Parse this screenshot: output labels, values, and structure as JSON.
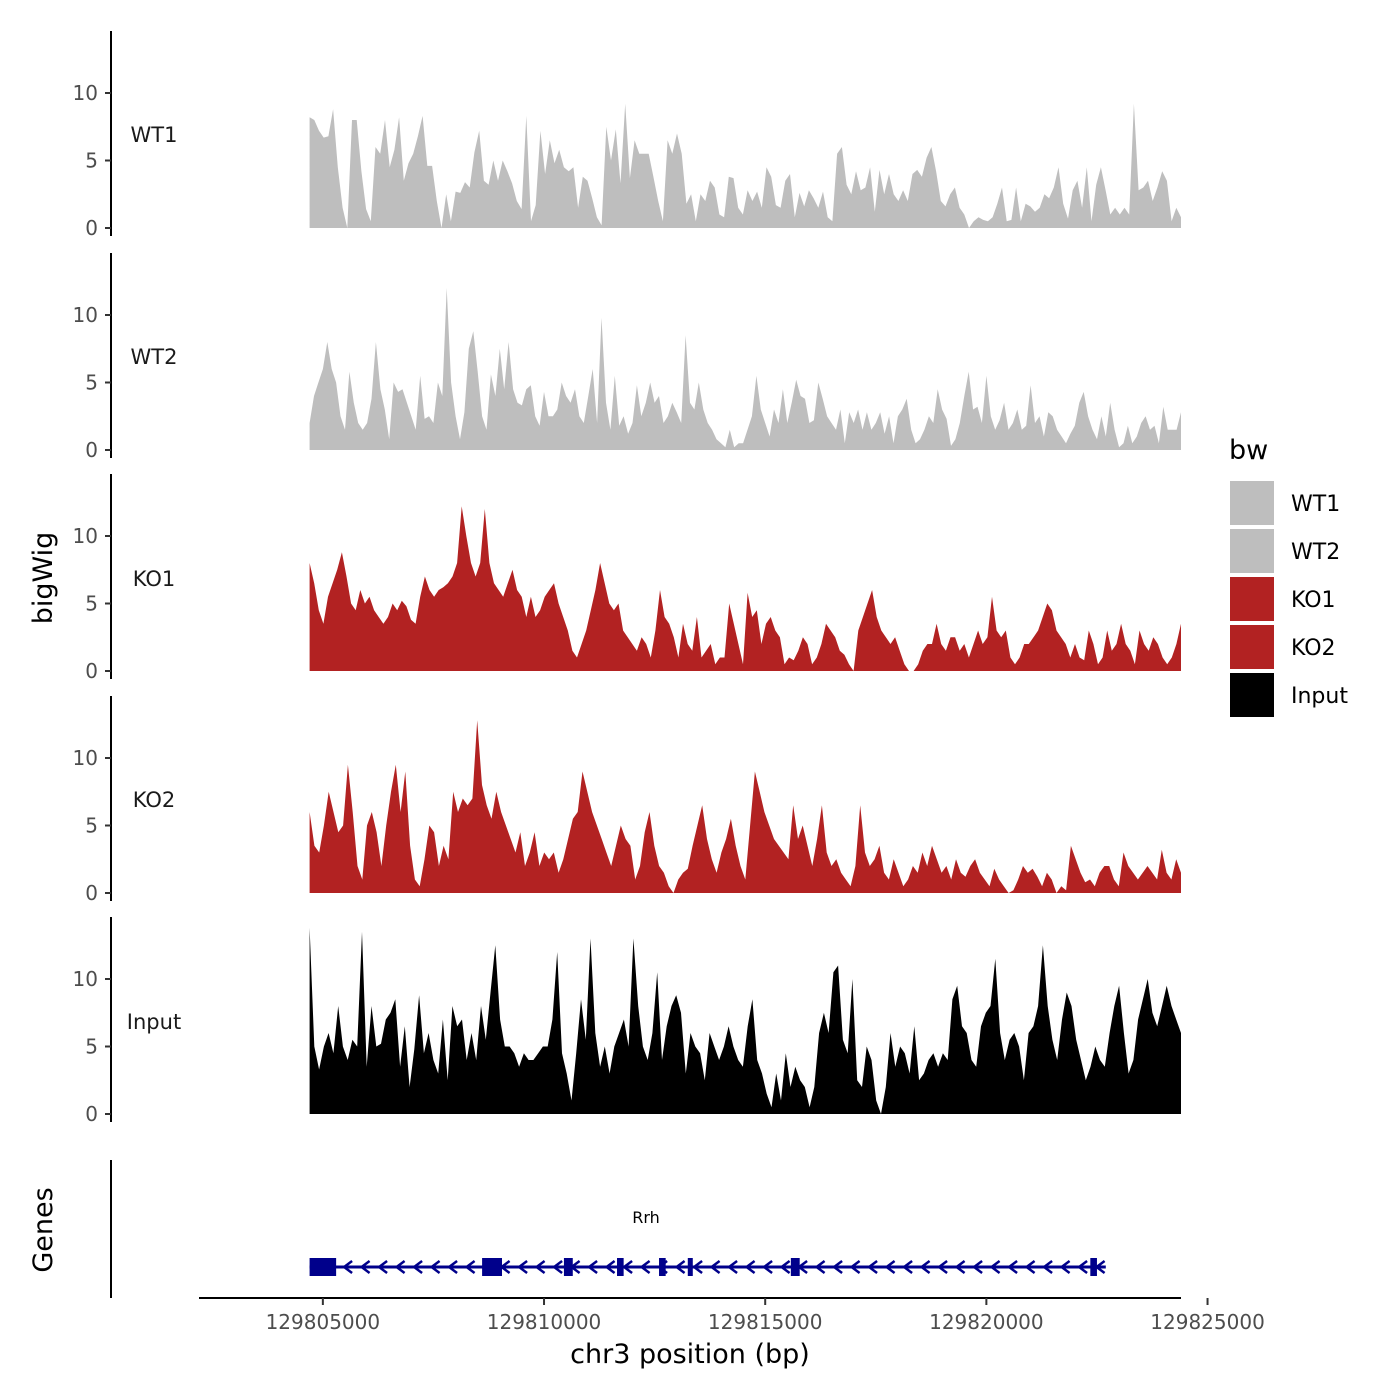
{
  "chart_data": {
    "type": "area",
    "title": "",
    "ylabel": "bigWig",
    "gene_panel_label": "Genes",
    "xlabel": "chr3 position (bp)",
    "x_range": [
      129802200,
      129824400
    ],
    "data_x_start": 129804700,
    "data_x_end": 129824400,
    "ylim": [
      0,
      14.5
    ],
    "y_ticks": [
      "0",
      "5",
      "10"
    ],
    "y_tick_values": [
      0,
      5,
      10
    ],
    "x_ticks": [
      "129805000",
      "129810000",
      "129815000",
      "129820000",
      "129825000"
    ],
    "x_tick_values": [
      129805000,
      129810000,
      129815000,
      129820000,
      129825000
    ],
    "legend": {
      "title": "bw",
      "position": "right",
      "entries": [
        {
          "label": "WT1",
          "color": "#bebebe"
        },
        {
          "label": "WT2",
          "color": "#bebebe"
        },
        {
          "label": "KO1",
          "color": "#b22222"
        },
        {
          "label": "KO2",
          "color": "#b22222"
        },
        {
          "label": "Input",
          "color": "#000000"
        }
      ]
    },
    "series": [
      {
        "name": "WT1",
        "color": "#bebebe",
        "values": [
          8.2,
          8.0,
          7.2,
          6.7,
          6.8,
          8.8,
          4.5,
          1.5,
          0.0,
          8.0,
          8.0,
          4.2,
          1.4,
          0.5,
          6.0,
          5.5,
          8.0,
          4.5,
          5.8,
          8.2,
          3.5,
          4.8,
          5.5,
          6.8,
          8.3,
          4.6,
          4.6,
          2.0,
          0.0,
          2.5,
          0.5,
          2.7,
          2.6,
          3.4,
          3.0,
          5.6,
          7.2,
          3.5,
          3.2,
          5.0,
          3.5,
          5.0,
          4.2,
          3.3,
          2.0,
          1.4,
          8.3,
          0.5,
          1.7,
          7.2,
          4.0,
          6.5,
          4.8,
          5.8,
          4.5,
          4.2,
          4.5,
          1.5,
          3.8,
          3.5,
          2.2,
          0.8,
          0.2,
          7.5,
          5.0,
          7.3,
          3.3,
          9.2,
          3.7,
          6.5,
          5.5,
          5.5,
          5.5,
          3.8,
          2.0,
          0.5,
          6.5,
          5.5,
          7.0,
          5.5,
          1.8,
          2.5,
          0.5,
          2.5,
          2.0,
          3.5,
          3.0,
          1.0,
          0.8,
          3.8,
          3.7,
          1.5,
          1.0,
          2.8,
          2.0,
          2.7,
          1.5,
          4.5,
          3.8,
          1.7,
          1.5,
          3.5,
          4.0,
          0.8,
          2.6,
          1.6,
          2.8,
          2.2,
          1.5,
          2.7,
          0.8,
          0.5,
          5.5,
          6.0,
          3.2,
          2.5,
          4.2,
          2.8,
          3.0,
          4.5,
          1.2,
          4.3,
          2.5,
          4.0,
          2.5,
          2.0,
          2.8,
          2.0,
          4.0,
          4.3,
          3.8,
          5.2,
          6.0,
          4.2,
          2.0,
          1.6,
          2.5,
          3.0,
          1.5,
          1.0,
          0.0,
          0.5,
          0.8,
          0.6,
          0.5,
          0.8,
          1.8,
          3.0,
          0.5,
          0.6,
          3.0,
          0.5,
          1.8,
          1.6,
          1.2,
          1.5,
          2.5,
          2.2,
          3.0,
          4.5,
          1.8,
          0.7,
          2.8,
          3.5,
          1.5,
          4.5,
          0.5,
          3.2,
          4.5,
          2.8,
          1.0,
          1.5,
          1.0,
          1.5,
          1.0,
          9.2,
          2.8,
          3.0,
          3.5,
          2.0,
          3.0,
          4.2,
          3.5,
          0.5,
          1.5,
          0.8
        ]
      },
      {
        "name": "WT2",
        "color": "#bebebe",
        "values": [
          2.0,
          4.0,
          5.0,
          6.0,
          8.0,
          6.0,
          5.0,
          2.5,
          1.5,
          5.8,
          3.5,
          2.0,
          1.5,
          2.0,
          3.8,
          8.0,
          4.5,
          3.0,
          0.8,
          5.0,
          4.3,
          4.5,
          3.5,
          2.5,
          1.5,
          5.5,
          2.3,
          2.5,
          2.0,
          5.0,
          4.0,
          12.0,
          5.0,
          2.5,
          0.8,
          2.8,
          7.5,
          8.8,
          5.8,
          2.5,
          1.5,
          5.6,
          4.0,
          7.5,
          4.5,
          8.0,
          4.5,
          3.5,
          3.3,
          4.5,
          4.8,
          2.5,
          1.8,
          4.3,
          2.5,
          2.5,
          3.0,
          5.0,
          4.0,
          3.5,
          4.5,
          2.5,
          2.0,
          4.0,
          6.0,
          2.0,
          9.8,
          3.5,
          1.5,
          5.5,
          1.8,
          2.5,
          1.2,
          2.0,
          4.8,
          2.5,
          3.5,
          5.0,
          3.5,
          4.0,
          2.0,
          2.5,
          3.5,
          2.8,
          2.0,
          8.5,
          3.5,
          3.0,
          5.0,
          3.0,
          2.0,
          1.5,
          0.8,
          0.5,
          0.2,
          1.5,
          0.2,
          0.5,
          0.5,
          1.5,
          2.5,
          5.5,
          3.0,
          2.0,
          1.0,
          3.0,
          2.0,
          4.5,
          2.0,
          3.5,
          5.2,
          4.0,
          3.8,
          2.0,
          2.2,
          5.0,
          3.8,
          2.5,
          2.0,
          1.5,
          3.0,
          0.5,
          2.8,
          2.0,
          3.0,
          1.5,
          2.8,
          1.5,
          2.0,
          2.8,
          1.2,
          2.5,
          0.5,
          2.5,
          3.0,
          3.8,
          1.5,
          0.5,
          0.8,
          1.5,
          2.5,
          2.0,
          4.5,
          3.0,
          2.3,
          0.3,
          0.8,
          2.0,
          4.0,
          5.8,
          3.0,
          3.2,
          2.0,
          5.5,
          2.5,
          1.5,
          2.2,
          3.5,
          1.5,
          2.0,
          3.0,
          1.5,
          1.8,
          4.8,
          2.0,
          2.5,
          1.0,
          2.8,
          2.5,
          1.5,
          1.0,
          0.5,
          1.2,
          1.8,
          3.5,
          4.3,
          2.5,
          1.5,
          0.8,
          2.5,
          1.0,
          3.5,
          1.5,
          0.2,
          0.5,
          1.8,
          0.5,
          1.0,
          2.0,
          2.5,
          1.5,
          1.8,
          0.5,
          3.2,
          1.5,
          1.5,
          1.5,
          2.8
        ]
      },
      {
        "name": "KO1",
        "color": "#b22222",
        "values": [
          8.0,
          6.5,
          4.5,
          3.5,
          5.5,
          6.5,
          7.5,
          8.8,
          7.0,
          5.0,
          4.5,
          6.0,
          5.0,
          5.5,
          4.5,
          4.0,
          3.5,
          4.0,
          5.0,
          4.5,
          5.2,
          4.8,
          3.8,
          3.5,
          5.5,
          7.0,
          6.0,
          5.5,
          6.0,
          6.2,
          6.5,
          7.0,
          8.0,
          12.2,
          10.0,
          8.0,
          7.0,
          8.0,
          12.0,
          8.0,
          6.5,
          6.0,
          5.5,
          6.5,
          7.5,
          6.0,
          5.5,
          4.0,
          5.5,
          4.0,
          4.5,
          5.5,
          6.0,
          6.5,
          5.0,
          4.0,
          3.0,
          1.5,
          1.0,
          2.0,
          3.0,
          4.5,
          6.0,
          8.0,
          6.5,
          5.0,
          4.5,
          5.0,
          3.0,
          2.5,
          2.0,
          1.5,
          2.5,
          2.0,
          1.0,
          3.0,
          6.0,
          4.0,
          3.5,
          2.5,
          1.0,
          3.5,
          2.0,
          1.5,
          4.0,
          1.0,
          1.5,
          2.0,
          0.5,
          1.0,
          1.0,
          5.0,
          3.5,
          2.0,
          0.5,
          5.8,
          4.0,
          4.5,
          2.0,
          3.5,
          4.0,
          3.0,
          2.5,
          0.5,
          1.0,
          0.8,
          1.5,
          2.5,
          2.0,
          0.5,
          1.0,
          2.0,
          3.5,
          3.0,
          2.5,
          1.5,
          1.2,
          0.5,
          0.0,
          3.0,
          4.0,
          5.0,
          6.0,
          4.0,
          3.0,
          2.5,
          2.0,
          2.5,
          1.5,
          0.5,
          0.0,
          0.0,
          0.5,
          1.5,
          2.0,
          2.0,
          3.5,
          2.0,
          1.5,
          2.5,
          2.5,
          1.5,
          2.0,
          1.0,
          2.0,
          3.0,
          2.0,
          2.5,
          5.5,
          3.0,
          2.5,
          3.0,
          1.0,
          0.5,
          1.0,
          2.0,
          2.0,
          2.5,
          3.0,
          4.0,
          5.0,
          4.5,
          3.0,
          2.5,
          2.0,
          1.0,
          2.0,
          1.0,
          0.8,
          3.0,
          2.0,
          0.5,
          1.0,
          3.0,
          1.5,
          2.0,
          3.5,
          2.0,
          1.5,
          0.5,
          3.0,
          2.0,
          1.5,
          2.5,
          2.0,
          1.0,
          0.5,
          1.0,
          2.0,
          3.5
        ]
      },
      {
        "name": "KO2",
        "color": "#b22222",
        "values": [
          6.0,
          3.5,
          3.0,
          5.0,
          7.5,
          6.0,
          4.5,
          5.0,
          9.5,
          6.0,
          2.0,
          1.0,
          5.0,
          6.0,
          4.5,
          2.0,
          5.0,
          7.5,
          9.5,
          6.0,
          9.0,
          3.5,
          1.0,
          0.5,
          2.5,
          5.0,
          4.5,
          2.0,
          3.5,
          2.5,
          7.5,
          6.0,
          7.0,
          6.5,
          7.0,
          12.8,
          8.0,
          6.5,
          5.5,
          7.5,
          6.0,
          5.0,
          4.0,
          3.0,
          4.5,
          2.0,
          3.0,
          4.5,
          2.0,
          3.0,
          2.5,
          3.0,
          1.5,
          2.5,
          4.0,
          5.5,
          6.0,
          9.0,
          7.5,
          6.0,
          5.0,
          4.0,
          3.0,
          2.0,
          3.5,
          5.0,
          4.0,
          3.5,
          1.0,
          2.0,
          4.5,
          6.0,
          3.5,
          2.0,
          1.5,
          0.5,
          0.0,
          1.0,
          1.5,
          1.8,
          3.5,
          5.0,
          6.5,
          4.0,
          2.5,
          1.5,
          3.0,
          4.0,
          5.5,
          3.5,
          2.0,
          1.0,
          5.0,
          9.0,
          7.5,
          6.0,
          5.0,
          4.0,
          3.5,
          3.0,
          2.5,
          6.5,
          4.0,
          5.0,
          3.5,
          2.0,
          4.0,
          6.5,
          3.0,
          2.0,
          2.5,
          1.5,
          1.0,
          0.5,
          2.0,
          6.5,
          3.0,
          2.0,
          2.5,
          3.5,
          1.5,
          1.0,
          2.5,
          1.5,
          0.5,
          1.0,
          2.0,
          1.5,
          3.0,
          2.0,
          3.5,
          2.5,
          1.5,
          2.0,
          1.0,
          2.5,
          1.5,
          1.2,
          2.0,
          2.5,
          1.5,
          1.0,
          0.5,
          1.8,
          1.0,
          0.5,
          0.0,
          0.2,
          1.0,
          2.0,
          1.5,
          1.8,
          1.2,
          0.5,
          1.5,
          1.0,
          0.0,
          0.5,
          0.2,
          3.5,
          2.5,
          1.5,
          0.8,
          1.0,
          0.5,
          1.5,
          2.0,
          2.0,
          1.0,
          0.5,
          3.0,
          2.0,
          1.5,
          1.0,
          1.5,
          2.0,
          1.5,
          1.0,
          3.2,
          1.5,
          1.0,
          2.5,
          1.5
        ]
      },
      {
        "name": "Input",
        "color": "#000000",
        "values": [
          13.8,
          5.0,
          3.3,
          5.0,
          6.0,
          4.5,
          8.0,
          5.0,
          4.0,
          5.5,
          5.0,
          13.5,
          3.5,
          8.0,
          5.0,
          5.2,
          7.0,
          7.5,
          8.5,
          3.5,
          6.5,
          2.0,
          4.8,
          8.8,
          4.5,
          6.0,
          4.0,
          3.0,
          7.0,
          2.5,
          8.0,
          6.5,
          7.0,
          4.0,
          6.0,
          4.0,
          8.0,
          5.5,
          9.0,
          12.5,
          7.0,
          5.0,
          5.0,
          4.5,
          3.5,
          4.5,
          4.0,
          4.0,
          4.5,
          5.0,
          5.0,
          7.0,
          12.0,
          4.5,
          3.0,
          1.0,
          4.5,
          8.5,
          5.5,
          13.0,
          6.0,
          3.5,
          5.0,
          3.0,
          5.0,
          6.0,
          7.0,
          5.0,
          13.0,
          8.0,
          5.0,
          4.0,
          6.0,
          10.5,
          4.0,
          6.5,
          8.0,
          8.8,
          7.5,
          3.0,
          6.0,
          5.0,
          4.5,
          2.5,
          6.0,
          5.0,
          4.0,
          5.0,
          6.5,
          5.0,
          4.0,
          3.5,
          6.5,
          8.5,
          4.0,
          3.0,
          1.5,
          0.5,
          3.0,
          1.0,
          4.5,
          2.0,
          3.5,
          2.5,
          2.0,
          0.5,
          2.0,
          6.0,
          7.5,
          6.0,
          10.5,
          11.0,
          5.5,
          4.5,
          10.0,
          2.5,
          2.0,
          5.0,
          4.0,
          1.0,
          0.0,
          2.0,
          6.0,
          3.5,
          5.0,
          4.5,
          3.0,
          6.5,
          2.5,
          3.0,
          4.0,
          4.5,
          3.5,
          4.5,
          4.0,
          8.5,
          9.5,
          6.5,
          6.0,
          4.0,
          3.5,
          6.5,
          7.5,
          8.0,
          11.5,
          6.0,
          4.0,
          5.5,
          6.0,
          5.0,
          2.5,
          6.0,
          6.5,
          8.0,
          12.5,
          8.0,
          5.5,
          4.0,
          7.0,
          9.0,
          8.0,
          5.5,
          4.0,
          2.5,
          3.5,
          5.0,
          4.0,
          3.5,
          6.0,
          8.0,
          9.5,
          6.0,
          3.0,
          4.0,
          7.0,
          8.5,
          10.0,
          7.5,
          6.5,
          8.0,
          9.5,
          8.0,
          7.0,
          6.0
        ]
      }
    ],
    "gene": {
      "name": "Rrh",
      "color": "#00008b",
      "start": 129804700,
      "end": 129822700,
      "strand": "-",
      "exons": [
        [
          129804700,
          129805300
        ],
        [
          129808600,
          129809050
        ],
        [
          129810450,
          129810650
        ],
        [
          129811650,
          129811800
        ],
        [
          129812600,
          129812750
        ],
        [
          129813250,
          129813350
        ],
        [
          129815580,
          129815780
        ],
        [
          129822350,
          129822500
        ]
      ]
    }
  }
}
